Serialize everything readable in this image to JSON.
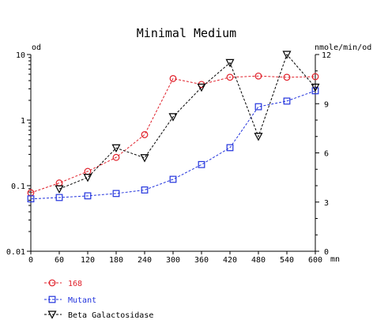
{
  "chart_data": {
    "type": "line",
    "title": "Minimal Medium",
    "left_axis_unit": "od",
    "right_axis_unit": "nmole/min/od",
    "x_unit": "mn",
    "x_ticks": [
      0,
      60,
      120,
      180,
      240,
      300,
      360,
      420,
      480,
      540,
      600
    ],
    "xlim": [
      0,
      600
    ],
    "y_left": {
      "scale": "log",
      "ylim": [
        0.01,
        10
      ],
      "ticks": [
        0.01,
        0.1,
        1,
        10
      ],
      "tick_labels": [
        "0.01",
        "0.1",
        "1",
        "10"
      ]
    },
    "y_right": {
      "scale": "linear",
      "ylim": [
        0,
        12
      ],
      "ticks": [
        0,
        3,
        6,
        9,
        12
      ],
      "tick_labels": [
        "0",
        "3",
        "6",
        "9",
        "12"
      ]
    },
    "grid": false,
    "legend_position": "bottom-left",
    "series": [
      {
        "name": "168",
        "axis": "left",
        "marker": "circle",
        "color": "#e0202a",
        "x": [
          0,
          60,
          120,
          180,
          240,
          300,
          360,
          420,
          480,
          540,
          600
        ],
        "y": [
          0.078,
          0.11,
          0.165,
          0.27,
          0.6,
          4.3,
          3.5,
          4.5,
          4.7,
          4.5,
          4.6
        ]
      },
      {
        "name": "Mutant",
        "axis": "left",
        "marker": "square",
        "color": "#2233dd",
        "x": [
          0,
          60,
          120,
          180,
          240,
          300,
          360,
          420,
          480,
          540,
          600
        ],
        "y": [
          0.063,
          0.066,
          0.07,
          0.076,
          0.086,
          0.125,
          0.21,
          0.38,
          1.6,
          1.95,
          2.8
        ]
      },
      {
        "name": "Beta Galactosidase",
        "axis": "right",
        "marker": "triangle-down",
        "color": "#000000",
        "x": [
          60,
          120,
          180,
          240,
          300,
          360,
          420,
          480,
          540,
          600
        ],
        "y": [
          3.8,
          4.5,
          6.3,
          5.7,
          8.2,
          10.0,
          11.5,
          7.0,
          12.0,
          10.0
        ]
      }
    ]
  }
}
